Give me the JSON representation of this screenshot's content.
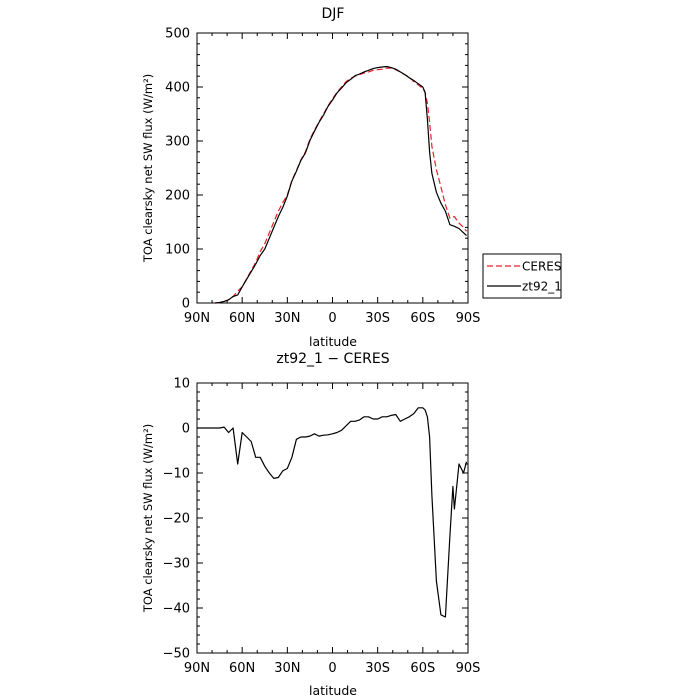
{
  "chart_data": [
    {
      "type": "line",
      "title": "DJF",
      "xlabel": "latitude",
      "ylabel": "TOA clearsky net SW flux (W/m²)",
      "xlim": [
        90,
        -90
      ],
      "ylim": [
        0,
        500
      ],
      "x_ticks": [
        90,
        60,
        30,
        0,
        -30,
        -60,
        -90
      ],
      "x_tick_labels": [
        "90N",
        "60N",
        "30N",
        "0",
        "30S",
        "60S",
        "90S"
      ],
      "y_ticks": [
        0,
        100,
        200,
        300,
        400,
        500
      ],
      "y_tick_labels": [
        "0",
        "100",
        "200",
        "300",
        "400",
        "500"
      ],
      "legend_position": "outside-right",
      "series": [
        {
          "name": "CERES",
          "color": "#e8202a",
          "dash": "dashed",
          "x": [
            78,
            75,
            72,
            69,
            66,
            63,
            60,
            57,
            54,
            51,
            48,
            45,
            42,
            39,
            36,
            33,
            30,
            27,
            24,
            21,
            18,
            15,
            12,
            9,
            6,
            3,
            0,
            -3,
            -6,
            -9,
            -12,
            -15,
            -18,
            -21,
            -24,
            -27,
            -30,
            -33,
            -36,
            -39,
            -42,
            -45,
            -48,
            -51,
            -54,
            -57,
            -60,
            -61.5,
            -63,
            -64.5,
            -66,
            -69,
            -72,
            -75,
            -78,
            -81,
            -84,
            -87,
            -89
          ],
          "y": [
            0,
            1,
            3,
            6,
            12,
            22,
            30,
            45,
            60,
            75,
            95,
            110,
            130,
            150,
            170,
            186,
            200,
            227,
            245,
            265,
            280,
            303,
            320,
            335,
            350,
            365,
            378,
            390,
            400,
            410,
            416,
            420,
            423,
            426,
            428,
            431,
            432,
            433,
            435,
            435,
            432,
            428,
            423,
            418,
            410,
            404,
            397,
            390,
            370,
            335,
            290,
            247,
            215,
            182,
            157,
            160,
            148,
            140,
            133
          ]
        },
        {
          "name": "zt92_1",
          "color": "#000000",
          "dash": "solid",
          "x": [
            78,
            75,
            72,
            69,
            66,
            63,
            60,
            57,
            54,
            51,
            48,
            45,
            42,
            39,
            36,
            33,
            30,
            27,
            24,
            21,
            18,
            15,
            12,
            9,
            6,
            3,
            0,
            -3,
            -6,
            -9,
            -12,
            -15,
            -18,
            -21,
            -24,
            -27,
            -30,
            -33,
            -36,
            -39,
            -42,
            -45,
            -48,
            -51,
            -54,
            -57,
            -60,
            -61.5,
            -63,
            -64.5,
            -66,
            -69,
            -72,
            -75,
            -78,
            -81,
            -84,
            -87,
            -89
          ],
          "y": [
            0,
            1,
            3,
            6,
            12,
            15,
            30,
            44,
            58,
            72,
            88,
            100,
            120,
            140,
            160,
            177,
            198,
            226,
            244,
            264,
            278,
            301,
            318,
            334,
            348,
            364,
            376,
            389,
            398,
            408,
            414,
            421,
            424,
            428,
            431,
            434,
            436,
            437,
            438,
            436,
            433,
            428,
            423,
            417,
            412,
            406,
            400,
            390,
            340,
            280,
            240,
            205,
            185,
            170,
            145,
            142,
            138,
            130,
            125
          ]
        }
      ]
    },
    {
      "type": "line",
      "title": "zt92_1 − CERES",
      "xlabel": "latitude",
      "ylabel": "TOA clearsky net SW flux (W/m²)",
      "xlim": [
        90,
        -90
      ],
      "ylim": [
        -50,
        10
      ],
      "x_ticks": [
        90,
        60,
        30,
        0,
        -30,
        -60,
        -90
      ],
      "x_tick_labels": [
        "90N",
        "60N",
        "30N",
        "0",
        "30S",
        "60S",
        "90S"
      ],
      "y_ticks": [
        -50,
        -40,
        -30,
        -20,
        -10,
        0,
        10
      ],
      "y_tick_labels": [
        "−50",
        "−40",
        "−30",
        "−20",
        "−10",
        "0",
        "10"
      ],
      "series": [
        {
          "color": "#000000",
          "dash": "solid",
          "x": [
            90,
            87,
            84,
            81,
            78,
            75,
            72,
            69,
            66,
            63,
            60,
            57,
            54,
            51,
            48,
            45,
            42,
            39,
            36,
            33,
            30,
            27,
            24,
            21,
            18,
            15,
            12,
            9,
            6,
            3,
            0,
            -3,
            -6,
            -9,
            -12,
            -15,
            -18,
            -21,
            -24,
            -27,
            -30,
            -33,
            -36,
            -39,
            -42,
            -45,
            -48,
            -51,
            -54,
            -57,
            -60,
            -61.5,
            -63,
            -64.5,
            -66,
            -69,
            -72,
            -75,
            -78,
            -80,
            -81,
            -84,
            -87,
            -89
          ],
          "y": [
            0,
            0,
            0,
            0,
            0,
            0,
            0.2,
            -1,
            0,
            -8,
            -1,
            -2,
            -3,
            -6.5,
            -6.5,
            -8.5,
            -10,
            -11.2,
            -11,
            -9.5,
            -9,
            -6.5,
            -2.5,
            -2,
            -2,
            -1.8,
            -1.3,
            -1.8,
            -1.6,
            -1.5,
            -1.3,
            -1,
            -0.5,
            0.5,
            1.5,
            1.5,
            1.8,
            2.5,
            2.5,
            2.0,
            2.0,
            2.5,
            2.5,
            2.8,
            3.0,
            1.5,
            2.0,
            2.5,
            3.2,
            4.5,
            4.5,
            4.0,
            2.5,
            -2.0,
            -15,
            -34,
            -41.5,
            -42,
            -24,
            -13,
            -18,
            -8,
            -10,
            -7.5
          ]
        }
      ]
    }
  ]
}
